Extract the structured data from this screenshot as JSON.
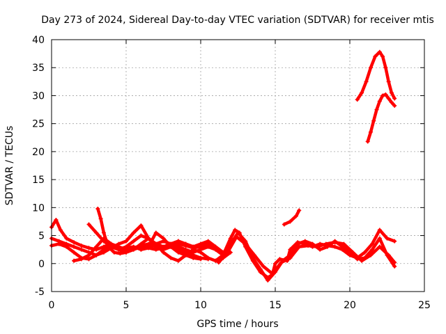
{
  "chart_data": {
    "type": "line",
    "title": "Day 273 of 2024, Sidereal Day-to-day VTEC variation (SDTVAR) for receiver mtis",
    "xlabel": "GPS time / hours",
    "ylabel": "SDTVAR / TECUs",
    "xlim": [
      0,
      25
    ],
    "ylim": [
      -5,
      40
    ],
    "xticks": [
      0,
      5,
      10,
      15,
      20,
      25
    ],
    "yticks": [
      -5,
      0,
      5,
      10,
      15,
      20,
      25,
      30,
      35,
      40
    ],
    "xtick_labels": [
      "0",
      "5",
      "10",
      "15",
      "20",
      "25"
    ],
    "ytick_labels": [
      "-5",
      "0",
      "5",
      "10",
      "15",
      "20",
      "25",
      "30",
      "35",
      "40"
    ],
    "grid": true,
    "series_color": "#ff0000",
    "series": [
      {
        "name": "s1",
        "x": [
          0.0,
          0.3,
          0.6,
          1.0,
          1.5,
          2.0,
          2.5,
          3.0,
          3.5,
          4.0,
          4.5,
          5.0,
          5.5,
          6.0,
          6.5,
          7.0,
          7.5,
          8.0,
          8.5,
          9.0,
          9.5,
          10.0,
          10.5,
          11.0,
          11.5
        ],
        "y": [
          6.5,
          7.8,
          6.0,
          4.5,
          3.8,
          3.2,
          2.8,
          2.5,
          3.0,
          3.5,
          3.0,
          2.5,
          2.8,
          3.2,
          3.5,
          3.0,
          2.5,
          3.0,
          3.5,
          3.2,
          2.8,
          3.0,
          3.5,
          2.5,
          1.5
        ]
      },
      {
        "name": "s2",
        "x": [
          0.0,
          0.5,
          1.0,
          1.5,
          2.0,
          2.5,
          3.0,
          3.5,
          4.0,
          4.5,
          5.0,
          5.5,
          6.0,
          6.5,
          7.0,
          7.5,
          8.0,
          8.5,
          9.0,
          9.5,
          10.0,
          10.5,
          11.0,
          11.5
        ],
        "y": [
          4.5,
          4.0,
          3.5,
          3.0,
          2.5,
          2.0,
          1.5,
          2.0,
          2.8,
          3.5,
          4.0,
          5.5,
          6.8,
          4.5,
          3.0,
          2.5,
          3.5,
          4.0,
          3.5,
          3.0,
          3.5,
          4.0,
          3.0,
          2.0
        ]
      },
      {
        "name": "s3",
        "x": [
          0.0,
          0.5,
          1.0,
          1.5,
          2.0,
          2.5,
          3.0,
          3.5,
          4.0,
          4.5,
          5.0,
          5.5,
          6.0,
          6.5,
          7.0,
          7.5,
          8.0,
          8.5,
          9.0,
          9.5,
          10.0,
          10.5,
          11.0
        ],
        "y": [
          3.2,
          3.5,
          3.0,
          2.0,
          1.0,
          0.8,
          1.5,
          2.5,
          3.0,
          2.5,
          2.8,
          3.0,
          2.5,
          2.8,
          3.5,
          4.0,
          3.5,
          3.0,
          2.5,
          2.0,
          2.5,
          3.0,
          2.5
        ]
      },
      {
        "name": "s4",
        "x": [
          1.5,
          2.0,
          2.5,
          3.0,
          3.5,
          4.0,
          4.5,
          5.0,
          5.5,
          6.0,
          6.5,
          7.0,
          7.5,
          8.0,
          8.5,
          9.0,
          9.5,
          10.0,
          10.5,
          11.0,
          11.5,
          12.0
        ],
        "y": [
          0.5,
          0.8,
          1.5,
          3.0,
          4.5,
          3.5,
          2.5,
          2.0,
          2.5,
          3.5,
          4.5,
          3.5,
          2.0,
          1.0,
          0.5,
          1.5,
          2.5,
          2.0,
          1.0,
          0.5,
          1.0,
          2.0
        ]
      },
      {
        "name": "s5",
        "x": [
          3.1,
          3.3,
          3.5,
          3.8,
          4.2,
          4.6,
          5.0,
          5.5,
          6.0,
          6.5,
          7.0,
          7.5,
          8.0,
          8.5,
          9.0,
          9.5,
          10.0,
          10.5
        ],
        "y": [
          9.8,
          8.0,
          5.5,
          3.0,
          2.0,
          1.8,
          2.0,
          2.5,
          3.0,
          2.8,
          2.5,
          2.8,
          3.0,
          2.5,
          2.0,
          1.5,
          1.0,
          0.8
        ]
      },
      {
        "name": "s6",
        "x": [
          2.5,
          3.0,
          3.5,
          4.0,
          4.5,
          5.0,
          5.5,
          6.0,
          6.5,
          7.0,
          7.5,
          8.0,
          8.5,
          9.0,
          9.5,
          10.0
        ],
        "y": [
          7.0,
          5.5,
          4.0,
          3.0,
          2.5,
          3.0,
          4.0,
          5.0,
          4.5,
          3.5,
          3.0,
          3.5,
          4.0,
          3.5,
          3.0,
          3.0
        ]
      },
      {
        "name": "s7",
        "x": [
          6.0,
          6.5,
          7.0,
          7.5,
          8.0,
          8.5,
          9.0,
          9.5,
          10.0
        ],
        "y": [
          2.5,
          3.0,
          5.5,
          4.5,
          3.0,
          2.0,
          1.5,
          1.0,
          0.8
        ]
      },
      {
        "name": "s8",
        "x": [
          11.0,
          11.5,
          12.0,
          12.3,
          12.6,
          13.0,
          13.5,
          14.0,
          14.5,
          14.8,
          15.0,
          15.3,
          15.8,
          16.0,
          16.5,
          17.0,
          17.5,
          18.0,
          18.5,
          19.0,
          19.5,
          20.0,
          20.5,
          21.0,
          21.5,
          22.0,
          22.5,
          23.0
        ],
        "y": [
          0.5,
          1.5,
          4.5,
          6.0,
          5.5,
          3.0,
          0.5,
          -1.5,
          -2.5,
          -2.0,
          0.0,
          0.8,
          0.5,
          2.5,
          3.8,
          3.5,
          3.0,
          3.5,
          3.2,
          3.0,
          2.5,
          1.5,
          1.0,
          2.0,
          3.5,
          6.0,
          4.5,
          4.0
        ]
      },
      {
        "name": "s9",
        "x": [
          11.5,
          12.0,
          12.5,
          13.0,
          13.5,
          14.0,
          14.5,
          15.0,
          15.5,
          16.0,
          16.5,
          17.0,
          17.5,
          18.0,
          18.5,
          19.0,
          19.5,
          20.0,
          20.5,
          21.0,
          21.5,
          22.0,
          22.5,
          23.0
        ],
        "y": [
          1.0,
          3.5,
          5.5,
          4.0,
          1.0,
          -1.0,
          -3.0,
          -1.5,
          0.5,
          1.5,
          3.5,
          4.0,
          3.5,
          2.5,
          3.0,
          4.0,
          3.0,
          2.0,
          0.8,
          1.0,
          2.5,
          4.5,
          1.5,
          -0.5
        ]
      },
      {
        "name": "s10",
        "x": [
          11.2,
          11.8,
          12.4,
          13.0,
          13.6,
          14.2,
          14.8,
          15.4,
          16.0,
          16.6,
          17.2,
          17.8,
          18.4,
          19.0,
          19.6,
          20.2,
          20.8,
          21.4,
          22.0,
          22.6,
          23.0
        ],
        "y": [
          0.2,
          2.0,
          4.8,
          3.5,
          1.5,
          -0.5,
          -1.8,
          0.2,
          1.0,
          3.0,
          3.2,
          3.0,
          3.5,
          3.8,
          3.5,
          2.0,
          0.5,
          1.5,
          3.0,
          1.5,
          0.2
        ]
      },
      {
        "name": "s11",
        "x": [
          15.6,
          16.0,
          16.4,
          16.6
        ],
        "y": [
          7.0,
          7.5,
          8.5,
          9.5
        ]
      },
      {
        "name": "s12",
        "x": [
          20.5,
          20.8,
          21.1,
          21.4,
          21.7,
          22.0,
          22.2,
          22.4,
          22.6,
          22.8,
          23.0
        ],
        "y": [
          29.3,
          30.5,
          32.5,
          35.0,
          37.0,
          37.8,
          37.0,
          35.0,
          32.5,
          30.5,
          29.5
        ]
      },
      {
        "name": "s13",
        "x": [
          21.2,
          21.4,
          21.6,
          21.8,
          22.0,
          22.2,
          22.4,
          22.6,
          22.8,
          23.0
        ],
        "y": [
          21.8,
          23.5,
          25.5,
          27.5,
          29.0,
          30.0,
          30.2,
          29.5,
          28.8,
          28.2
        ]
      }
    ]
  }
}
